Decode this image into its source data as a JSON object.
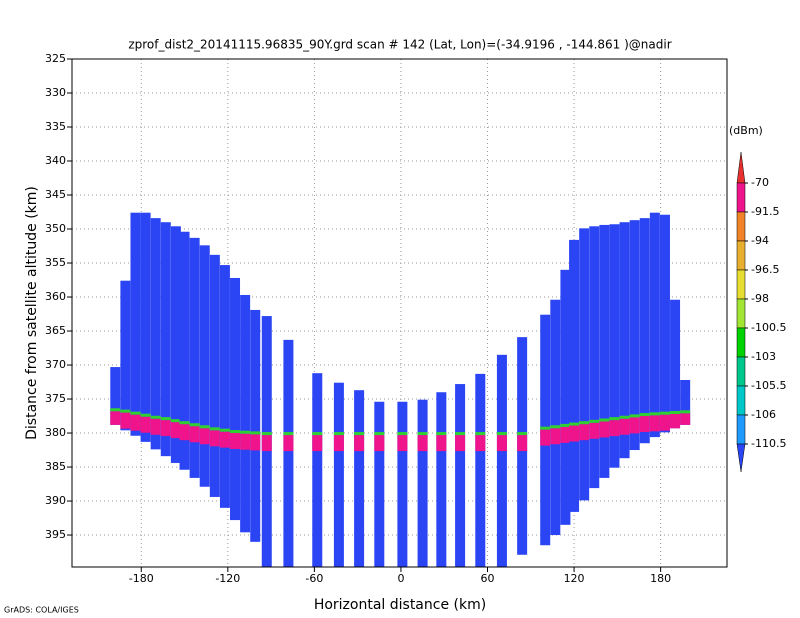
{
  "chart_data": {
    "type": "profile",
    "title": "zprof_dist2_20141115.96835_90Y.grd   scan # 142   (Lat, Lon)=(-34.9196 , -144.861 )@nadir",
    "x_label": "Horizontal distance (km)",
    "y_label": "Distance from satellite altitude (km)",
    "footer": "GrADS: COLA/IGES",
    "xlim": [
      -228,
      226
    ],
    "ylim": [
      325,
      399.7
    ],
    "y_inverted": true,
    "xticks": [
      -180,
      -120,
      -60,
      0,
      60,
      120,
      180
    ],
    "yticks": [
      325,
      330,
      335,
      340,
      345,
      350,
      355,
      360,
      365,
      370,
      375,
      380,
      385,
      390,
      395
    ],
    "grid": true,
    "color": "#2b45f5",
    "surface_color": "#f0148c",
    "surface_edge_color": "#30d030",
    "x": [
      -198,
      -191,
      -184,
      -177,
      -170,
      -163,
      -156,
      -150,
      -143,
      -136,
      -129,
      -122,
      -115,
      -108,
      -101,
      -93,
      -78,
      -58,
      -43,
      -29,
      -15,
      1,
      15,
      28,
      41,
      55,
      70,
      84,
      100,
      107,
      114,
      120,
      127,
      134,
      141,
      148,
      155,
      162,
      169,
      176,
      183,
      190,
      197
    ],
    "top": [
      370.3,
      357.6,
      347.6,
      347.6,
      348.4,
      349.0,
      349.6,
      350.4,
      351.3,
      352.4,
      353.8,
      355.3,
      357.2,
      359.7,
      361.9,
      362.8,
      366.3,
      371.2,
      372.6,
      373.7,
      375.4,
      375.4,
      375.1,
      374.0,
      372.8,
      371.3,
      368.5,
      365.9,
      362.6,
      360.4,
      356.0,
      351.6,
      349.9,
      349.6,
      349.4,
      349.3,
      349.0,
      348.7,
      348.4,
      347.6,
      347.9,
      360.4,
      372.2
    ],
    "bottom": [
      378.8,
      379.6,
      380.4,
      381.3,
      382.4,
      383.4,
      384.4,
      385.4,
      386.6,
      387.9,
      389.4,
      391.0,
      392.8,
      394.6,
      396.0,
      399.7,
      399.7,
      399.7,
      399.7,
      399.7,
      399.7,
      399.7,
      399.7,
      399.7,
      399.7,
      399.7,
      399.7,
      397.9,
      396.5,
      395.0,
      393.5,
      391.6,
      389.9,
      388.1,
      386.6,
      385.1,
      383.7,
      382.5,
      381.5,
      380.6,
      379.9,
      379.3,
      378.8
    ],
    "surface": [
      376.8,
      377.0,
      377.3,
      377.6,
      377.9,
      378.1,
      378.4,
      378.7,
      379.0,
      379.3,
      379.6,
      379.8,
      380.0,
      380.1,
      380.2,
      380.3,
      380.3,
      380.3,
      380.3,
      380.3,
      380.3,
      380.3,
      380.3,
      380.3,
      380.3,
      380.3,
      380.3,
      380.3,
      379.5,
      379.3,
      379.1,
      378.9,
      378.7,
      378.5,
      378.3,
      378.1,
      377.9,
      377.7,
      377.5,
      377.4,
      377.3,
      377.2,
      377.1
    ],
    "colorbar": {
      "label": "(dBm)",
      "ticks": [
        -70,
        -91.5,
        -94,
        -96.5,
        -98,
        -100.5,
        -103,
        -105.5,
        -106,
        -110.5
      ],
      "colors": [
        "#e8302e",
        "#f0148c",
        "#f08228",
        "#e6af2d",
        "#e6dc32",
        "#a0e632",
        "#00d200",
        "#00c88c",
        "#00c8c8",
        "#1e9bff",
        "#2b45f5"
      ]
    }
  }
}
